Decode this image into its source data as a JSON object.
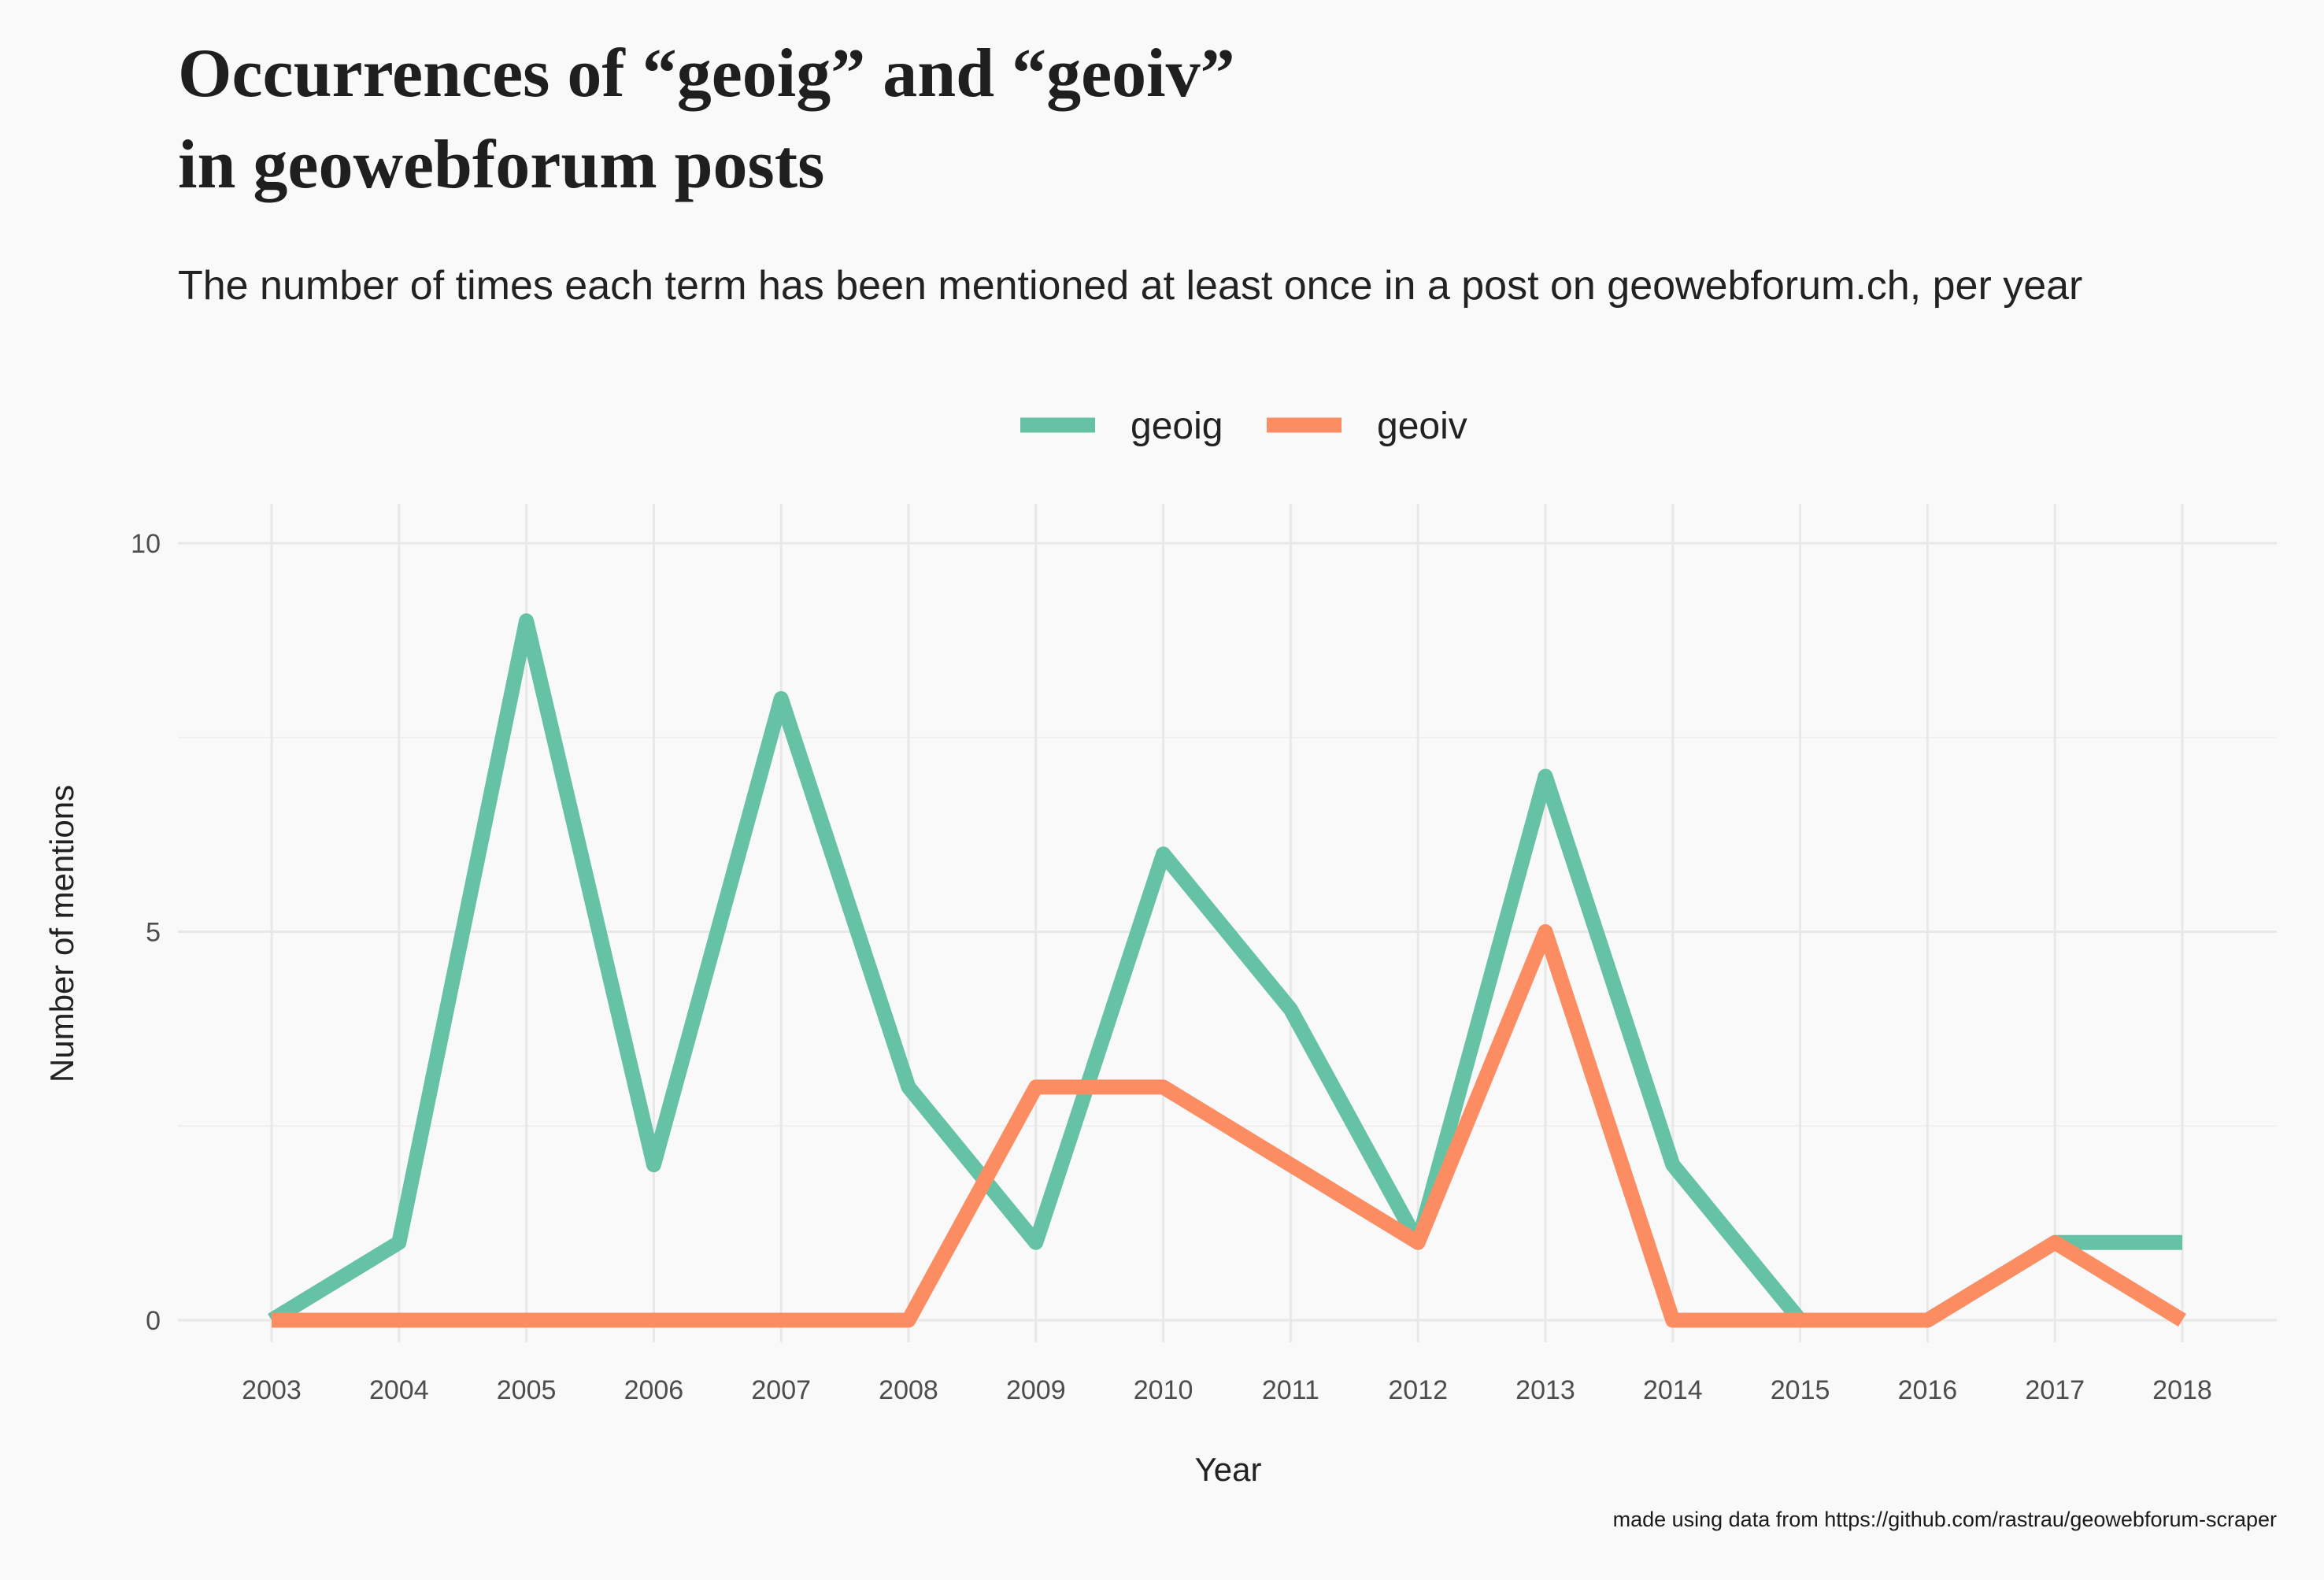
{
  "chart_data": {
    "type": "line",
    "title_lines": [
      "Occurrences of “geoig” and “geoiv”",
      "in geowebforum posts"
    ],
    "subtitle": "The number of times each term has been mentioned at least once in a post on geowebforum.ch, per year",
    "caption": "made using data from https://github.com/rastrau/geowebforum-scraper",
    "xlabel": "Year",
    "ylabel": "Number of mentions",
    "x": [
      "2003",
      "2004",
      "2005",
      "2006",
      "2007",
      "2008",
      "2009",
      "2010",
      "2011",
      "2012",
      "2013",
      "2014",
      "2015",
      "2016",
      "2017",
      "2018"
    ],
    "ylim": [
      0,
      10
    ],
    "y_ticks": [
      "0",
      "5",
      "10"
    ],
    "legend_position": "top",
    "grid": true,
    "series": [
      {
        "name": "geoig",
        "color": "#66c2a5",
        "values": [
          0,
          1,
          9,
          2,
          8,
          3,
          1,
          6,
          4,
          1,
          7,
          2,
          0,
          0,
          1,
          1
        ]
      },
      {
        "name": "geoiv",
        "color": "#fc8d62",
        "values": [
          0,
          0,
          0,
          0,
          0,
          0,
          3,
          3,
          2,
          1,
          5,
          0,
          0,
          0,
          1,
          0
        ]
      }
    ]
  }
}
